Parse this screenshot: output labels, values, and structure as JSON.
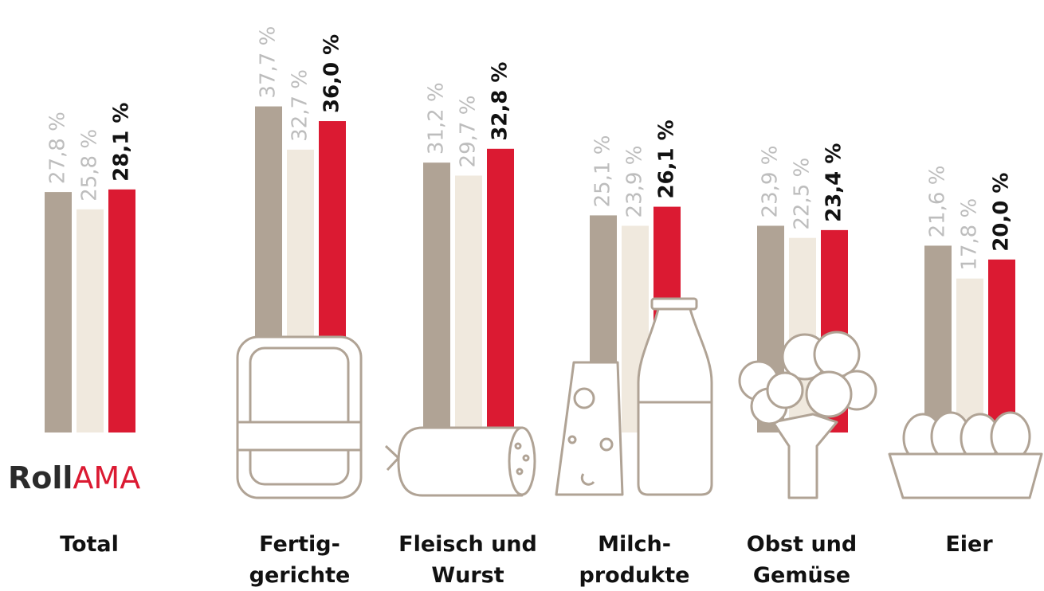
{
  "chart_data": {
    "type": "bar",
    "categories": [
      "Total",
      "Fertig-\ngerichte",
      "Fleisch und\nWurst",
      "Milch-\nprodukte",
      "Obst und\nGemüse",
      "Eier"
    ],
    "series": [
      {
        "color": "#b0a395",
        "values": [
          27.8,
          37.7,
          31.2,
          25.1,
          23.9,
          21.6
        ],
        "value_labels": [
          "27,8 %",
          "37,7 %",
          "31,2 %",
          "25,1 %",
          "23,9 %",
          "21,6 %"
        ]
      },
      {
        "color": "#f0e9de",
        "values": [
          25.8,
          32.7,
          29.7,
          23.9,
          22.5,
          17.8
        ],
        "value_labels": [
          "25,8 %",
          "32,7 %",
          "29,7 %",
          "23,9 %",
          "22,5 %",
          "17,8 %"
        ]
      },
      {
        "color": "#db1a32",
        "values": [
          28.1,
          36.0,
          32.8,
          26.1,
          23.4,
          20.0
        ],
        "value_labels": [
          "28,1 %",
          "36,0 %",
          "32,8 %",
          "26,1 %",
          "23,4 %",
          "20,0 %"
        ]
      }
    ],
    "ylim": [
      0,
      50
    ],
    "logo": [
      "Roll",
      "AMA"
    ]
  }
}
